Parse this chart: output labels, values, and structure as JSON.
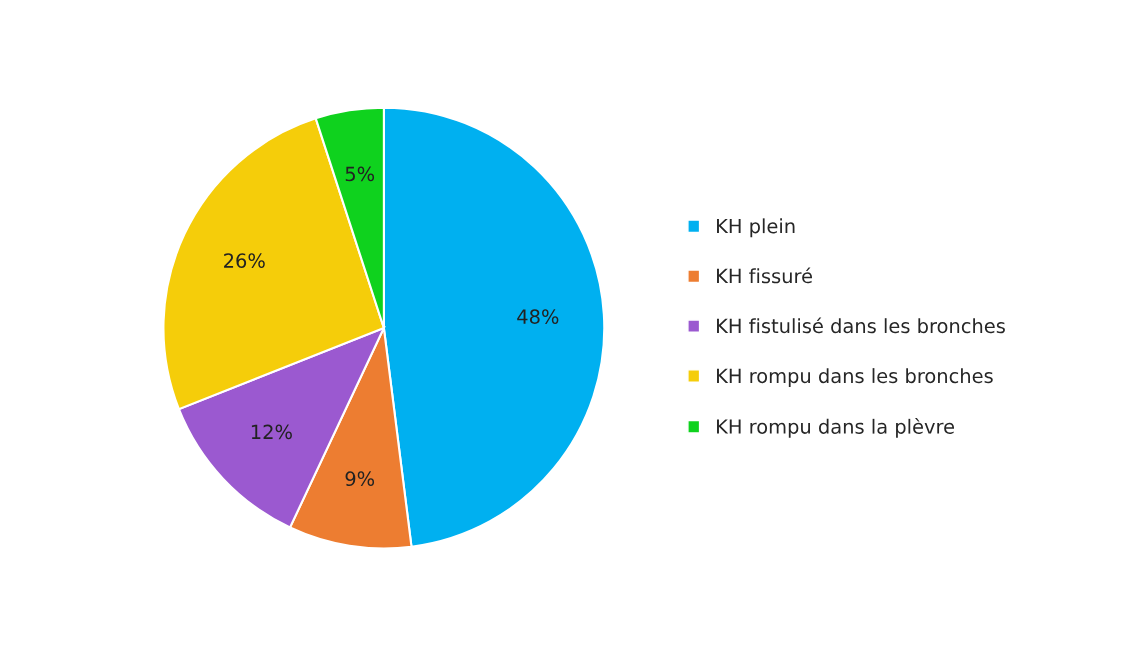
{
  "chart_data": {
    "type": "pie",
    "categories": [
      "KH plein",
      "KH fissuré",
      "KH fistulisé dans les bronches",
      "KH rompu dans les bronches",
      "KH rompu dans la plèvre"
    ],
    "values": [
      48,
      9,
      12,
      26,
      5
    ],
    "colors": [
      "#00b0f0",
      "#ed7d31",
      "#9b59d0",
      "#f5cd0a",
      "#0fd21e"
    ],
    "value_labels": [
      "48%",
      "9%",
      "12%",
      "26%",
      "5%"
    ],
    "legend": "right"
  }
}
